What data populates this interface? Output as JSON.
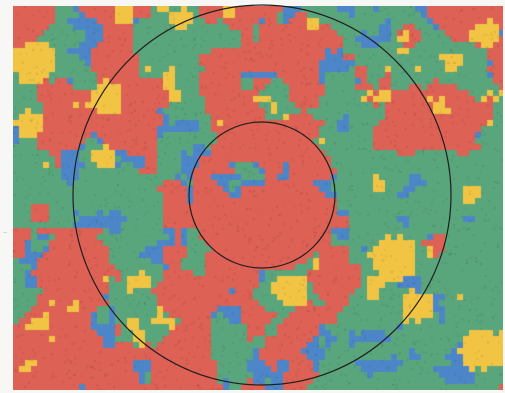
{
  "map": {
    "type": "classified-land-cover-raster",
    "classes": [
      {
        "id": "green",
        "color": "#5aa67c"
      },
      {
        "id": "red",
        "color": "#dd6155"
      },
      {
        "id": "blue",
        "color": "#4c86c8"
      },
      {
        "id": "yellow",
        "color": "#f1c444"
      }
    ],
    "cell_size": 6,
    "rings": [
      {
        "id": "outer-ring",
        "color": "#1e1e1e"
      },
      {
        "id": "inner-ring",
        "color": "#1e1e1e"
      }
    ]
  }
}
